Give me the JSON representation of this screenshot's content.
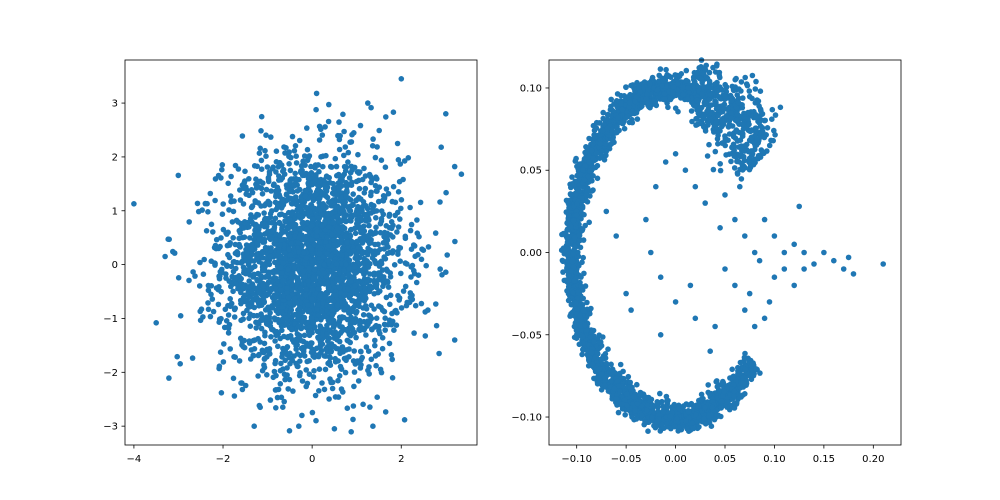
{
  "chart_data": [
    {
      "type": "scatter",
      "title": "",
      "xlabel": "",
      "ylabel": "",
      "xlim": [
        -4.2,
        3.7
      ],
      "ylim": [
        -3.35,
        3.8
      ],
      "xticks": [
        -4,
        -2,
        0,
        2
      ],
      "yticks": [
        -3,
        -2,
        -1,
        0,
        1,
        2,
        3
      ],
      "grid": false,
      "legend": "none",
      "marker_color": "#1f77b4",
      "series": [
        {
          "distribution": "standard-normal-2d",
          "count": 3000,
          "outliers": [
            [
              -4.0,
              1.13
            ],
            [
              2.0,
              3.45
            ],
            [
              3.0,
              2.8
            ],
            [
              0.1,
              3.18
            ],
            [
              -3.5,
              -1.08
            ],
            [
              3.2,
              1.82
            ],
            [
              3.35,
              1.68
            ],
            [
              -1.3,
              -3.0
            ],
            [
              0.5,
              -3.05
            ],
            [
              -0.3,
              -3.0
            ],
            [
              3.2,
              -1.4
            ],
            [
              2.85,
              -1.65
            ],
            [
              -3.3,
              0.15
            ],
            [
              -2.95,
              -0.95
            ],
            [
              1.25,
              3.0
            ]
          ]
        }
      ]
    },
    {
      "type": "scatter",
      "title": "",
      "xlabel": "",
      "ylabel": "",
      "xlim": [
        -0.128,
        0.228
      ],
      "ylim": [
        -0.117,
        0.117
      ],
      "xticks": [
        -0.1,
        -0.05,
        0.0,
        0.05,
        0.1,
        0.15,
        0.2
      ],
      "yticks": [
        -0.1,
        -0.05,
        0.0,
        0.05,
        0.1
      ],
      "grid": false,
      "legend": "none",
      "marker_color": "#1f77b4",
      "series": [
        {
          "shape": "crescent-arc",
          "arc_center": [
            0.0,
            0.0
          ],
          "arc_radius": [
            0.105,
            0.1
          ],
          "arc_start_deg": 35,
          "arc_end_deg": 318,
          "count": 3000,
          "interior_points": [
            [
              0.21,
              -0.007
            ],
            [
              0.18,
              -0.013
            ],
            [
              0.175,
              -0.003
            ],
            [
              0.17,
              -0.01
            ],
            [
              0.16,
              -0.005
            ],
            [
              0.15,
              0.0
            ],
            [
              0.14,
              -0.007
            ],
            [
              0.13,
              0.0
            ],
            [
              0.12,
              0.005
            ],
            [
              0.11,
              -0.01
            ],
            [
              0.1,
              -0.015
            ],
            [
              0.095,
              -0.03
            ],
            [
              0.09,
              -0.04
            ],
            [
              0.08,
              -0.045
            ],
            [
              0.07,
              -0.035
            ],
            [
              0.06,
              -0.02
            ],
            [
              0.05,
              -0.01
            ],
            [
              0.045,
              0.015
            ],
            [
              0.03,
              0.03
            ],
            [
              0.02,
              0.04
            ],
            [
              0.01,
              0.05
            ],
            [
              0.0,
              0.06
            ],
            [
              -0.01,
              0.055
            ],
            [
              -0.02,
              0.04
            ],
            [
              -0.03,
              0.02
            ],
            [
              -0.025,
              0.0
            ],
            [
              -0.015,
              -0.015
            ],
            [
              0.0,
              -0.03
            ],
            [
              0.02,
              -0.04
            ],
            [
              0.04,
              -0.045
            ],
            [
              -0.05,
              -0.025
            ],
            [
              -0.045,
              -0.035
            ],
            [
              -0.015,
              -0.05
            ],
            [
              0.035,
              -0.06
            ],
            [
              0.06,
              0.02
            ],
            [
              0.07,
              0.01
            ],
            [
              0.08,
              0.0
            ],
            [
              0.09,
              0.02
            ],
            [
              0.11,
              0.0
            ],
            [
              0.12,
              -0.02
            ],
            [
              0.125,
              0.028
            ],
            [
              0.13,
              -0.01
            ],
            [
              -0.06,
              0.01
            ],
            [
              -0.07,
              0.025
            ],
            [
              0.05,
              0.035
            ],
            [
              0.065,
              0.04
            ],
            [
              0.075,
              -0.025
            ],
            [
              0.085,
              -0.005
            ],
            [
              0.1,
              0.01
            ],
            [
              0.015,
              -0.02
            ]
          ]
        }
      ]
    }
  ]
}
